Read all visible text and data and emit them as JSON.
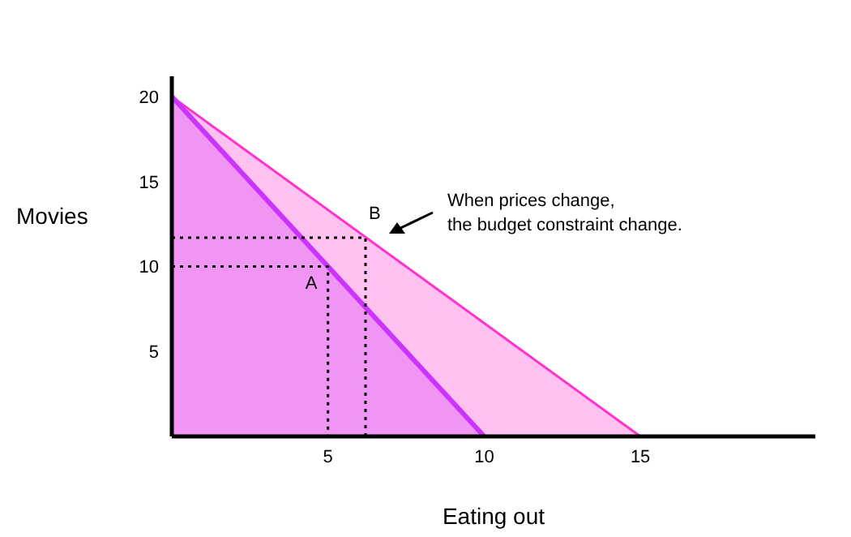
{
  "chart_data": {
    "type": "area",
    "xlabel": "Eating out",
    "ylabel": "Movies",
    "xlim": [
      0,
      20.6
    ],
    "ylim": [
      0,
      21.2
    ],
    "xticks": [
      5,
      10,
      15
    ],
    "yticks": [
      5,
      10,
      15,
      20
    ],
    "grid": false,
    "legend": false,
    "marker": "none",
    "series": [
      {
        "color": "#ff33cc",
        "x": [
          0,
          15
        ],
        "values": [
          20,
          0
        ]
      },
      {
        "color": "#cc33ff",
        "x": [
          0,
          10
        ],
        "values": [
          20,
          0
        ]
      },
      {
        "type": "line",
        "color": "#000000",
        "line_style": "dotted",
        "x": [
          0,
          5,
          5
        ],
        "values": [
          10,
          10,
          0
        ]
      },
      {
        "type": "line",
        "color": "#000000",
        "line_style": "dotted",
        "x": [
          0,
          6.2,
          6.2
        ],
        "values": [
          11.7,
          11.7,
          0
        ]
      }
    ],
    "annotations": [
      {
        "text": "A",
        "x": 5,
        "y": 10
      },
      {
        "text": "B",
        "x": 6.2,
        "y": 11.7
      },
      "When prices change,\nthe budget constraint change."
    ]
  }
}
